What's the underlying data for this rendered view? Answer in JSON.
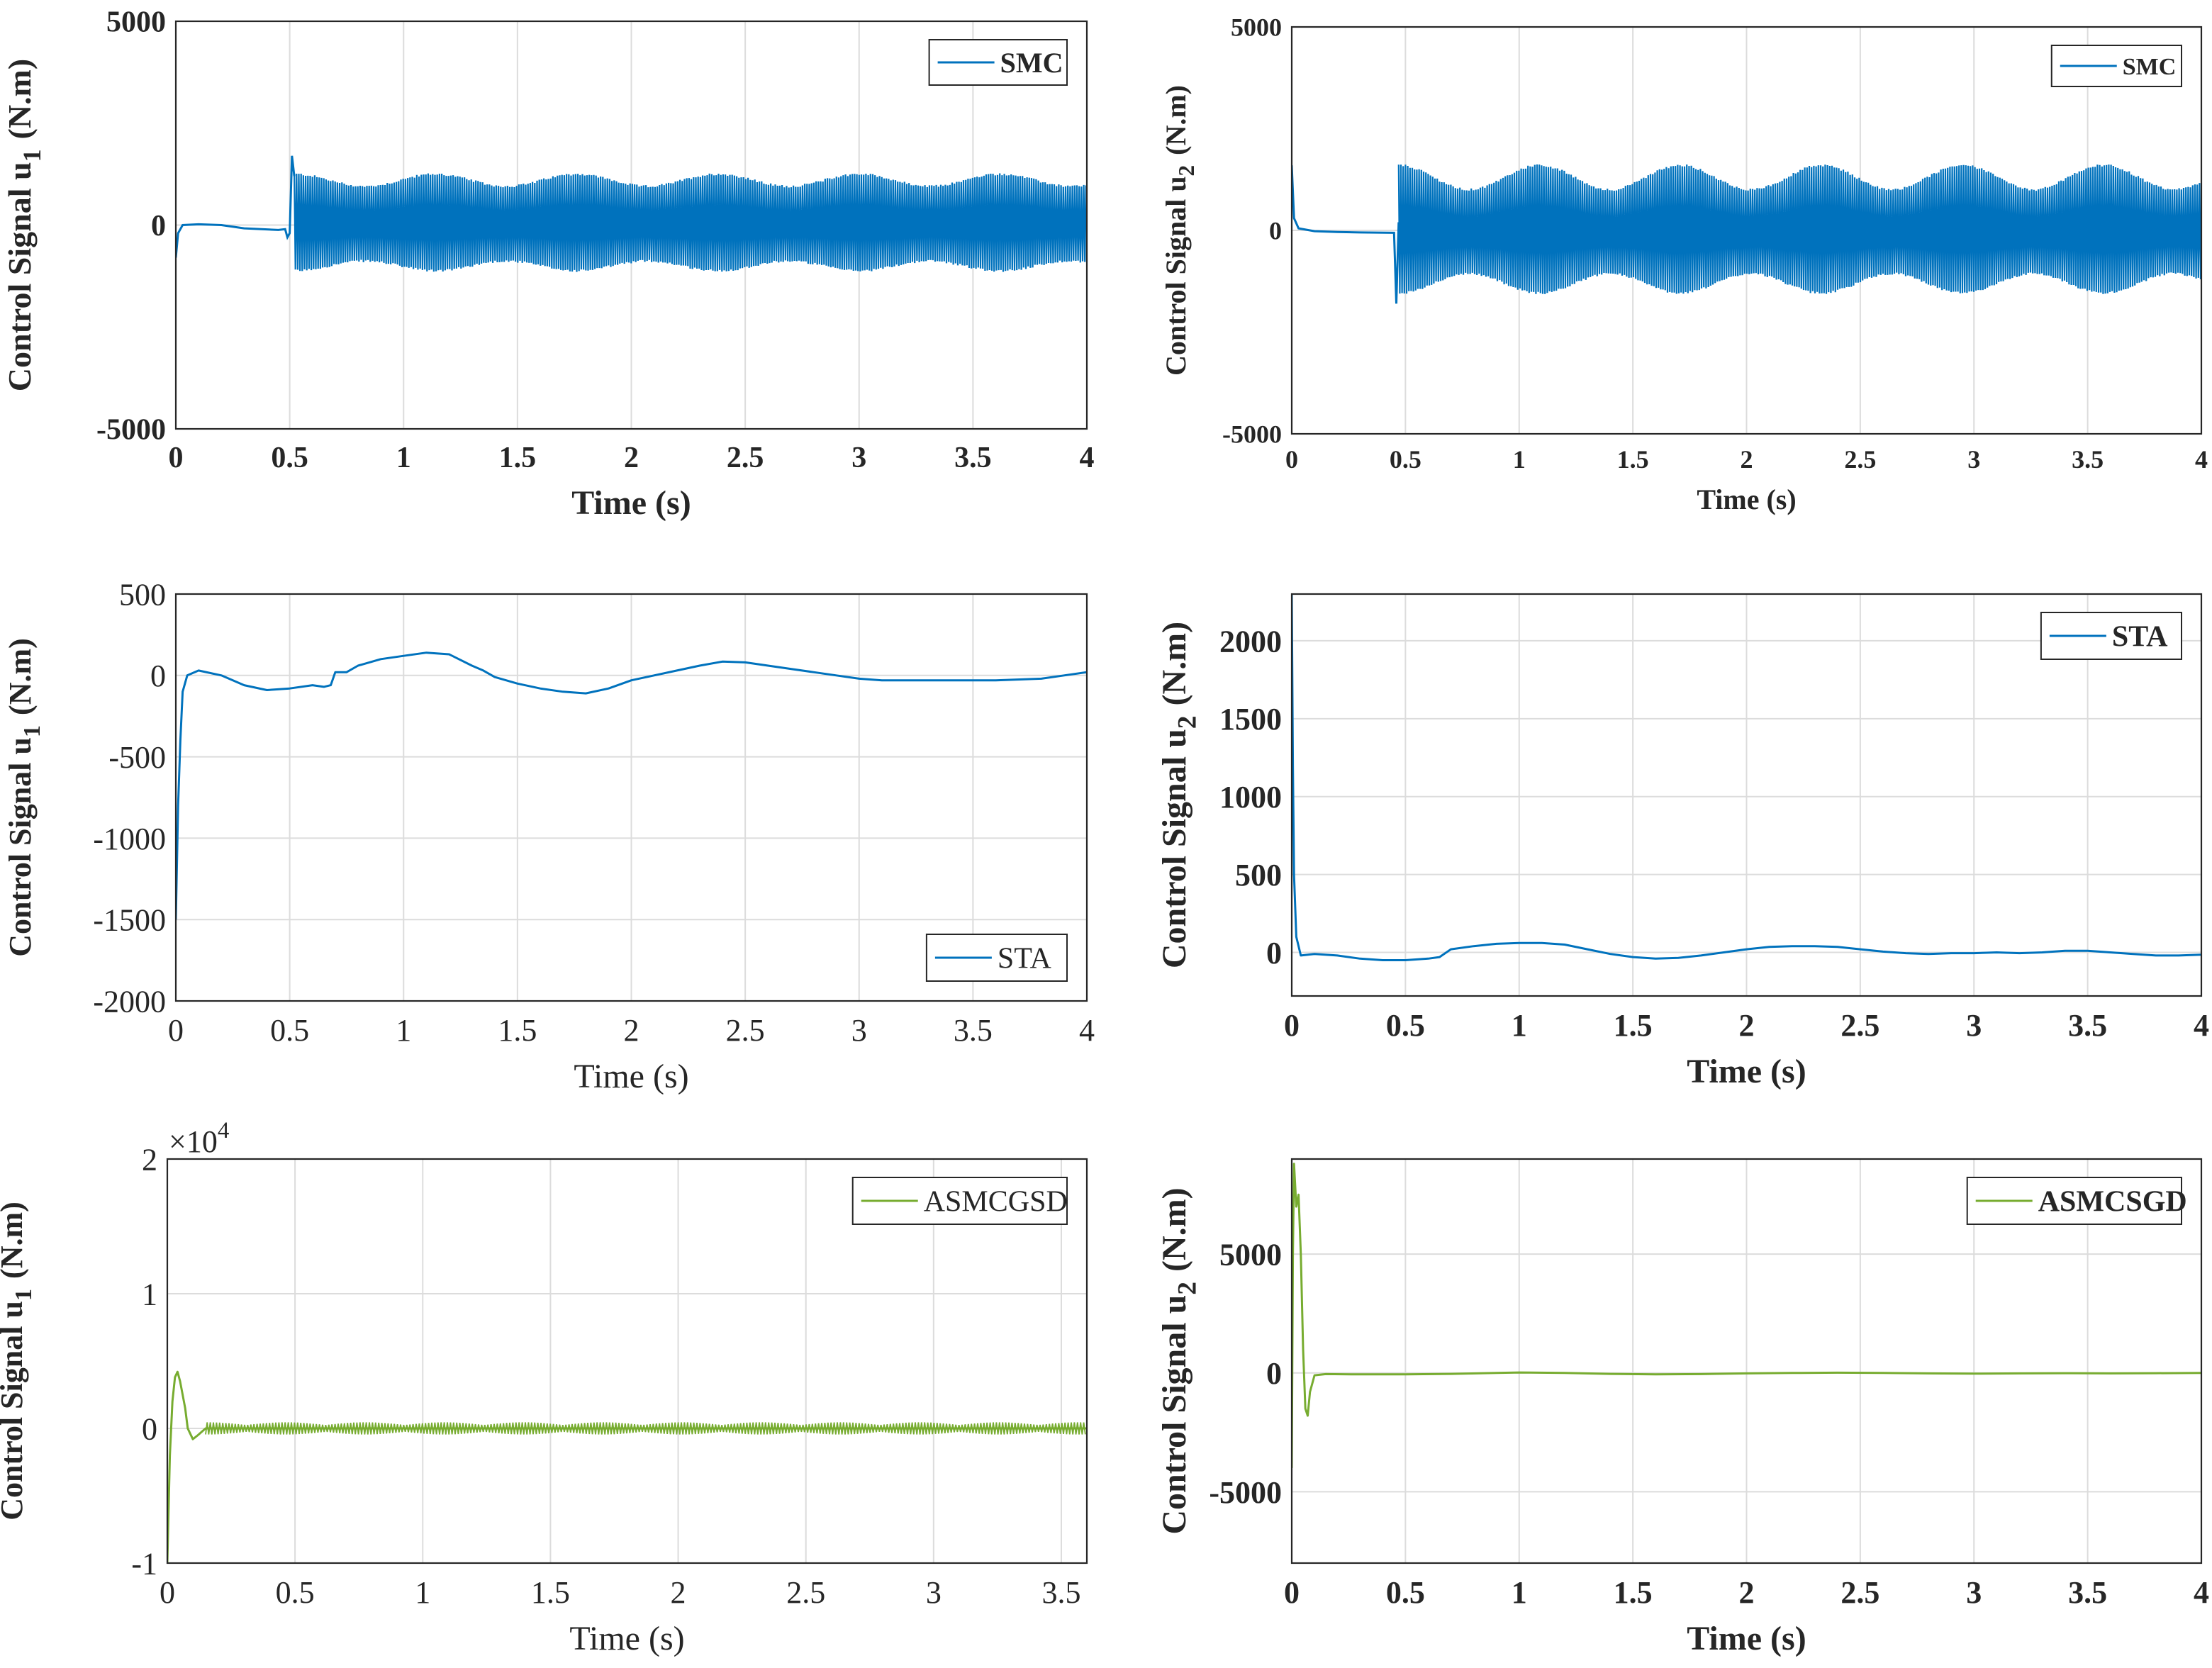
{
  "figure": {
    "colors": {
      "smc": "#0072BD",
      "sta": "#0072BD",
      "asmc": "#77AC30",
      "grid": "#dcdcdc",
      "axis": "#262626",
      "text": "#262626"
    }
  },
  "chart_data": [
    {
      "type": "line",
      "id": "smc_u1",
      "xlabel": "Time (s)",
      "ylabel": "Control Signal u",
      "ylabel_sub": "1",
      "ylabel_unit": "(N.m)",
      "xlim": [
        0,
        4
      ],
      "ylim": [
        -5000,
        5000
      ],
      "xticks": [
        "0",
        "0.5",
        "1",
        "1.5",
        "2",
        "2.5",
        "3",
        "3.5",
        "4"
      ],
      "yticks": [
        "-5000",
        "0",
        "5000"
      ],
      "legend": "SMC",
      "legend_position": "top-right",
      "grid": true,
      "bold": true,
      "color": "#0072BD",
      "series": [
        {
          "name": "SMC",
          "signal": "chattering",
          "pre": [
            [
              0,
              -800
            ],
            [
              0.01,
              -200
            ],
            [
              0.03,
              0
            ],
            [
              0.1,
              20
            ],
            [
              0.2,
              0
            ],
            [
              0.3,
              -80
            ],
            [
              0.45,
              -120
            ],
            [
              0.48,
              -100
            ],
            [
              0.49,
              -300
            ],
            [
              0.5,
              -200
            ],
            [
              0.51,
              1700
            ],
            [
              0.52,
              1200
            ]
          ],
          "band": {
            "start": 0.52,
            "end": 4.0,
            "upper": 1100,
            "lower": -1000,
            "ripple": 150,
            "period": 0.62
          }
        }
      ]
    },
    {
      "type": "line",
      "id": "smc_u2",
      "xlabel": "Time (s)",
      "ylabel": "Control Signal u",
      "ylabel_sub": "2",
      "ylabel_unit": "(N.m)",
      "xlim": [
        0,
        4
      ],
      "ylim": [
        -5000,
        5000
      ],
      "xticks": [
        "0",
        "0.5",
        "1",
        "1.5",
        "2",
        "2.5",
        "3",
        "3.5",
        "4"
      ],
      "yticks": [
        "-5000",
        "0",
        "5000"
      ],
      "legend": "SMC",
      "legend_position": "top-right",
      "grid": true,
      "bold": true,
      "color": "#0072BD",
      "series": [
        {
          "name": "SMC",
          "signal": "chattering",
          "pre": [
            [
              0,
              1600
            ],
            [
              0.01,
              300
            ],
            [
              0.03,
              50
            ],
            [
              0.1,
              -20
            ],
            [
              0.2,
              -40
            ],
            [
              0.3,
              -50
            ],
            [
              0.45,
              -60
            ],
            [
              0.46,
              -1800
            ],
            [
              0.47,
              200
            ]
          ],
          "band": {
            "start": 0.47,
            "end": 4.0,
            "upper": 1300,
            "lower": -1300,
            "ripple": 300,
            "period": 0.62
          }
        }
      ]
    },
    {
      "type": "line",
      "id": "sta_u1",
      "xlabel": "Time (s)",
      "ylabel": "Control Signal u",
      "ylabel_sub": "1",
      "ylabel_unit": "(N.m)",
      "xlim": [
        0,
        4
      ],
      "ylim": [
        -2000,
        500
      ],
      "xticks": [
        "0",
        "0.5",
        "1",
        "1.5",
        "2",
        "2.5",
        "3",
        "3.5",
        "4"
      ],
      "yticks": [
        "-2000",
        "-1500",
        "-1000",
        "-500",
        "0",
        "500"
      ],
      "legend": "STA",
      "legend_position": "bottom-right",
      "grid": true,
      "bold": false,
      "color": "#0072BD",
      "series": [
        {
          "name": "STA",
          "points": [
            [
              0,
              -1500
            ],
            [
              0.01,
              -800
            ],
            [
              0.02,
              -400
            ],
            [
              0.03,
              -100
            ],
            [
              0.05,
              0
            ],
            [
              0.1,
              30
            ],
            [
              0.2,
              0
            ],
            [
              0.3,
              -60
            ],
            [
              0.4,
              -90
            ],
            [
              0.5,
              -80
            ],
            [
              0.6,
              -60
            ],
            [
              0.65,
              -70
            ],
            [
              0.68,
              -60
            ],
            [
              0.7,
              20
            ],
            [
              0.75,
              20
            ],
            [
              0.8,
              60
            ],
            [
              0.9,
              100
            ],
            [
              1.0,
              120
            ],
            [
              1.1,
              140
            ],
            [
              1.2,
              130
            ],
            [
              1.3,
              60
            ],
            [
              1.35,
              30
            ],
            [
              1.4,
              -10
            ],
            [
              1.5,
              -50
            ],
            [
              1.6,
              -80
            ],
            [
              1.7,
              -100
            ],
            [
              1.8,
              -110
            ],
            [
              1.9,
              -80
            ],
            [
              2.0,
              -30
            ],
            [
              2.1,
              0
            ],
            [
              2.2,
              30
            ],
            [
              2.3,
              60
            ],
            [
              2.4,
              85
            ],
            [
              2.5,
              80
            ],
            [
              2.6,
              60
            ],
            [
              2.7,
              40
            ],
            [
              2.8,
              20
            ],
            [
              2.9,
              0
            ],
            [
              3.0,
              -20
            ],
            [
              3.1,
              -30
            ],
            [
              3.2,
              -30
            ],
            [
              3.4,
              -30
            ],
            [
              3.6,
              -30
            ],
            [
              3.8,
              -20
            ],
            [
              3.9,
              0
            ],
            [
              4.0,
              20
            ]
          ]
        }
      ]
    },
    {
      "type": "line",
      "id": "sta_u2",
      "xlabel": "Time (s)",
      "ylabel": "Control Signal u",
      "ylabel_sub": "2",
      "ylabel_unit": "(N.m)",
      "xlim": [
        0,
        4
      ],
      "ylim": [
        -280,
        2300
      ],
      "xticks": [
        "0",
        "0.5",
        "1",
        "1.5",
        "2",
        "2.5",
        "3",
        "3.5",
        "4"
      ],
      "yticks": [
        "0",
        "500",
        "1000",
        "1500",
        "2000"
      ],
      "legend": "STA",
      "legend_position": "top-right",
      "grid": true,
      "bold": true,
      "color": "#0072BD",
      "series": [
        {
          "name": "STA",
          "points": [
            [
              0,
              2300
            ],
            [
              0.005,
              1200
            ],
            [
              0.01,
              500
            ],
            [
              0.02,
              100
            ],
            [
              0.04,
              -20
            ],
            [
              0.1,
              -10
            ],
            [
              0.2,
              -20
            ],
            [
              0.3,
              -40
            ],
            [
              0.4,
              -50
            ],
            [
              0.5,
              -50
            ],
            [
              0.6,
              -40
            ],
            [
              0.65,
              -30
            ],
            [
              0.7,
              20
            ],
            [
              0.8,
              40
            ],
            [
              0.9,
              55
            ],
            [
              1.0,
              60
            ],
            [
              1.1,
              60
            ],
            [
              1.2,
              50
            ],
            [
              1.3,
              20
            ],
            [
              1.4,
              -10
            ],
            [
              1.5,
              -30
            ],
            [
              1.6,
              -40
            ],
            [
              1.7,
              -35
            ],
            [
              1.8,
              -20
            ],
            [
              1.9,
              0
            ],
            [
              2.0,
              20
            ],
            [
              2.1,
              35
            ],
            [
              2.2,
              40
            ],
            [
              2.3,
              40
            ],
            [
              2.4,
              35
            ],
            [
              2.5,
              20
            ],
            [
              2.6,
              5
            ],
            [
              2.7,
              -5
            ],
            [
              2.8,
              -10
            ],
            [
              2.9,
              -5
            ],
            [
              3.0,
              -5
            ],
            [
              3.1,
              0
            ],
            [
              3.2,
              -5
            ],
            [
              3.3,
              0
            ],
            [
              3.4,
              10
            ],
            [
              3.5,
              10
            ],
            [
              3.6,
              0
            ],
            [
              3.7,
              -10
            ],
            [
              3.8,
              -20
            ],
            [
              3.9,
              -20
            ],
            [
              4.0,
              -15
            ]
          ]
        }
      ]
    },
    {
      "type": "line",
      "id": "asmc_u1",
      "xlabel": "Time (s)",
      "ylabel": "Control Signal u",
      "ylabel_sub": "1",
      "ylabel_unit": "(N.m)",
      "xlim": [
        0,
        3.6
      ],
      "ylim": [
        -10000,
        20000
      ],
      "xticks": [
        "0",
        "0.5",
        "1",
        "1.5",
        "2",
        "2.5",
        "3",
        "3.5"
      ],
      "yticks": [
        "-1",
        "0",
        "1",
        "2"
      ],
      "exponent": "×10",
      "exponent_power": "4",
      "legend": "ASMCGSD",
      "legend_position": "top-right",
      "grid": true,
      "bold": false,
      "color": "#77AC30",
      "series": [
        {
          "name": "ASMCGSD",
          "points": [
            [
              0,
              -10000
            ],
            [
              0.01,
              -2000
            ],
            [
              0.02,
              2000
            ],
            [
              0.03,
              3800
            ],
            [
              0.04,
              4200
            ],
            [
              0.05,
              3500
            ],
            [
              0.07,
              1500
            ],
            [
              0.08,
              0
            ],
            [
              0.1,
              -800
            ],
            [
              0.12,
              -500
            ],
            [
              0.15,
              0
            ],
            [
              0.3,
              0
            ],
            [
              0.6,
              0
            ],
            [
              1.0,
              0
            ],
            [
              1.5,
              0
            ],
            [
              2.0,
              0
            ],
            [
              2.5,
              0
            ],
            [
              3.0,
              0
            ],
            [
              3.6,
              0
            ]
          ]
        }
      ]
    },
    {
      "type": "line",
      "id": "asmc_u2",
      "xlabel": "Time (s)",
      "ylabel": "Control Signal u",
      "ylabel_sub": "2",
      "ylabel_unit": "(N.m)",
      "xlim": [
        0,
        4
      ],
      "ylim": [
        -8000,
        9000
      ],
      "xticks": [
        "0",
        "0.5",
        "1",
        "1.5",
        "2",
        "2.5",
        "3",
        "3.5",
        "4"
      ],
      "yticks": [
        "-5000",
        "0",
        "5000"
      ],
      "legend": "ASMCSGD",
      "legend_position": "top-right",
      "grid": true,
      "bold": true,
      "color": "#77AC30",
      "series": [
        {
          "name": "ASMCSGD",
          "points": [
            [
              0,
              -4000
            ],
            [
              0.005,
              5000
            ],
            [
              0.01,
              8800
            ],
            [
              0.02,
              7000
            ],
            [
              0.03,
              7500
            ],
            [
              0.04,
              5000
            ],
            [
              0.05,
              1000
            ],
            [
              0.06,
              -1500
            ],
            [
              0.07,
              -1800
            ],
            [
              0.08,
              -800
            ],
            [
              0.1,
              -100
            ],
            [
              0.15,
              -50
            ],
            [
              0.3,
              -60
            ],
            [
              0.5,
              -60
            ],
            [
              0.7,
              -40
            ],
            [
              0.9,
              0
            ],
            [
              1.0,
              20
            ],
            [
              1.2,
              0
            ],
            [
              1.4,
              -40
            ],
            [
              1.6,
              -60
            ],
            [
              1.8,
              -50
            ],
            [
              2.0,
              -20
            ],
            [
              2.2,
              0
            ],
            [
              2.4,
              10
            ],
            [
              2.6,
              0
            ],
            [
              2.8,
              -20
            ],
            [
              3.0,
              -30
            ],
            [
              3.2,
              -20
            ],
            [
              3.4,
              -10
            ],
            [
              3.6,
              -20
            ],
            [
              3.8,
              -10
            ],
            [
              4.0,
              0
            ]
          ]
        }
      ]
    }
  ]
}
